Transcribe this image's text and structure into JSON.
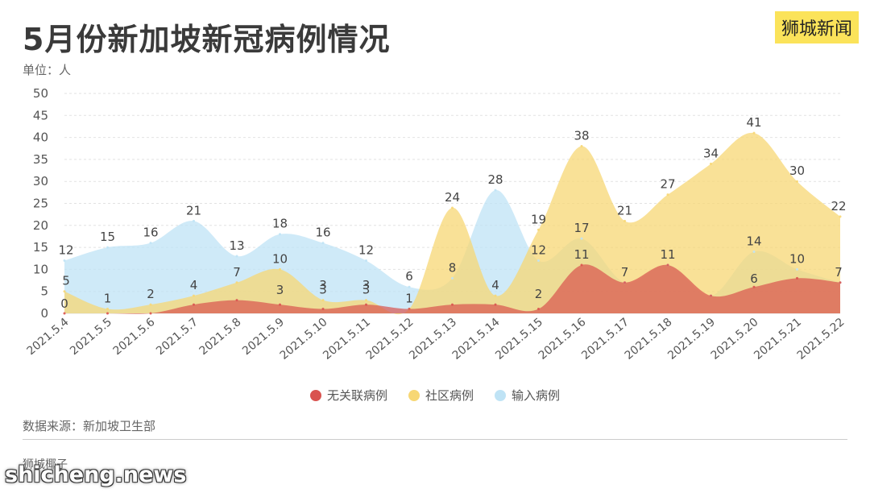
{
  "header": {
    "title": "5月份新加坡新冠病例情况",
    "brand": "狮城新闻",
    "unit_label": "单位：人"
  },
  "footer": {
    "source": "数据来源：新加坡卫生部",
    "brand_text": "狮城椰子",
    "site_watermark": "shicheng.news"
  },
  "colors": {
    "unlinked": "#d9534f",
    "community": "#f7d774",
    "imported": "#bfe3f5",
    "grid": "#e2e2e2",
    "axis_text": "#555555"
  },
  "chart_data": {
    "type": "area",
    "title": "5月份新加坡新冠病例情况",
    "ylabel": "单位：人",
    "xlabel": "",
    "ylim": [
      0,
      50
    ],
    "yticks": [
      0,
      5,
      10,
      15,
      20,
      25,
      30,
      35,
      40,
      45,
      50
    ],
    "grid": true,
    "smooth": true,
    "legend_position": "bottom",
    "categories": [
      "2021.5.4",
      "2021.5.5",
      "2021.5.6",
      "2021.5.7",
      "2021.5.8",
      "2021.5.9",
      "2021.5.10",
      "2021.5.11",
      "2021.5.12",
      "2021.5.13",
      "2021.5.14",
      "2021.5.15",
      "2021.5.16",
      "2021.5.17",
      "2021.5.18",
      "2021.5.19",
      "2021.5.20",
      "2021.5.21",
      "2021.5.22"
    ],
    "series": [
      {
        "name": "无关联病例",
        "color": "#d9534f",
        "values": [
          0,
          0,
          0,
          2,
          3,
          2,
          1,
          2,
          1,
          2,
          2,
          1,
          11,
          7,
          11,
          4,
          6,
          8,
          7
        ],
        "labels": [
          null,
          null,
          null,
          null,
          null,
          null,
          null,
          null,
          null,
          null,
          null,
          null,
          11,
          7,
          11,
          null,
          null,
          null,
          7
        ]
      },
      {
        "name": "社区病例",
        "color": "#f7d774",
        "values": [
          5,
          1,
          2,
          4,
          7,
          10,
          3,
          3,
          1,
          24,
          4,
          19,
          38,
          21,
          27,
          34,
          41,
          30,
          22
        ],
        "labels": [
          5,
          1,
          2,
          4,
          7,
          10,
          3,
          3,
          1,
          24,
          4,
          19,
          38,
          21,
          27,
          34,
          41,
          30,
          22
        ]
      },
      {
        "name": "输入病例",
        "color": "#bfe3f5",
        "values": [
          12,
          15,
          16,
          21,
          13,
          18,
          16,
          12,
          6,
          8,
          28,
          12,
          17,
          7,
          11,
          4,
          14,
          10,
          7
        ],
        "labels": [
          12,
          15,
          16,
          21,
          13,
          18,
          16,
          12,
          6,
          8,
          28,
          12,
          17,
          null,
          null,
          null,
          14,
          10,
          null
        ]
      }
    ],
    "extra_labels": [
      0,
      3,
      3,
      3,
      2,
      6
    ]
  }
}
